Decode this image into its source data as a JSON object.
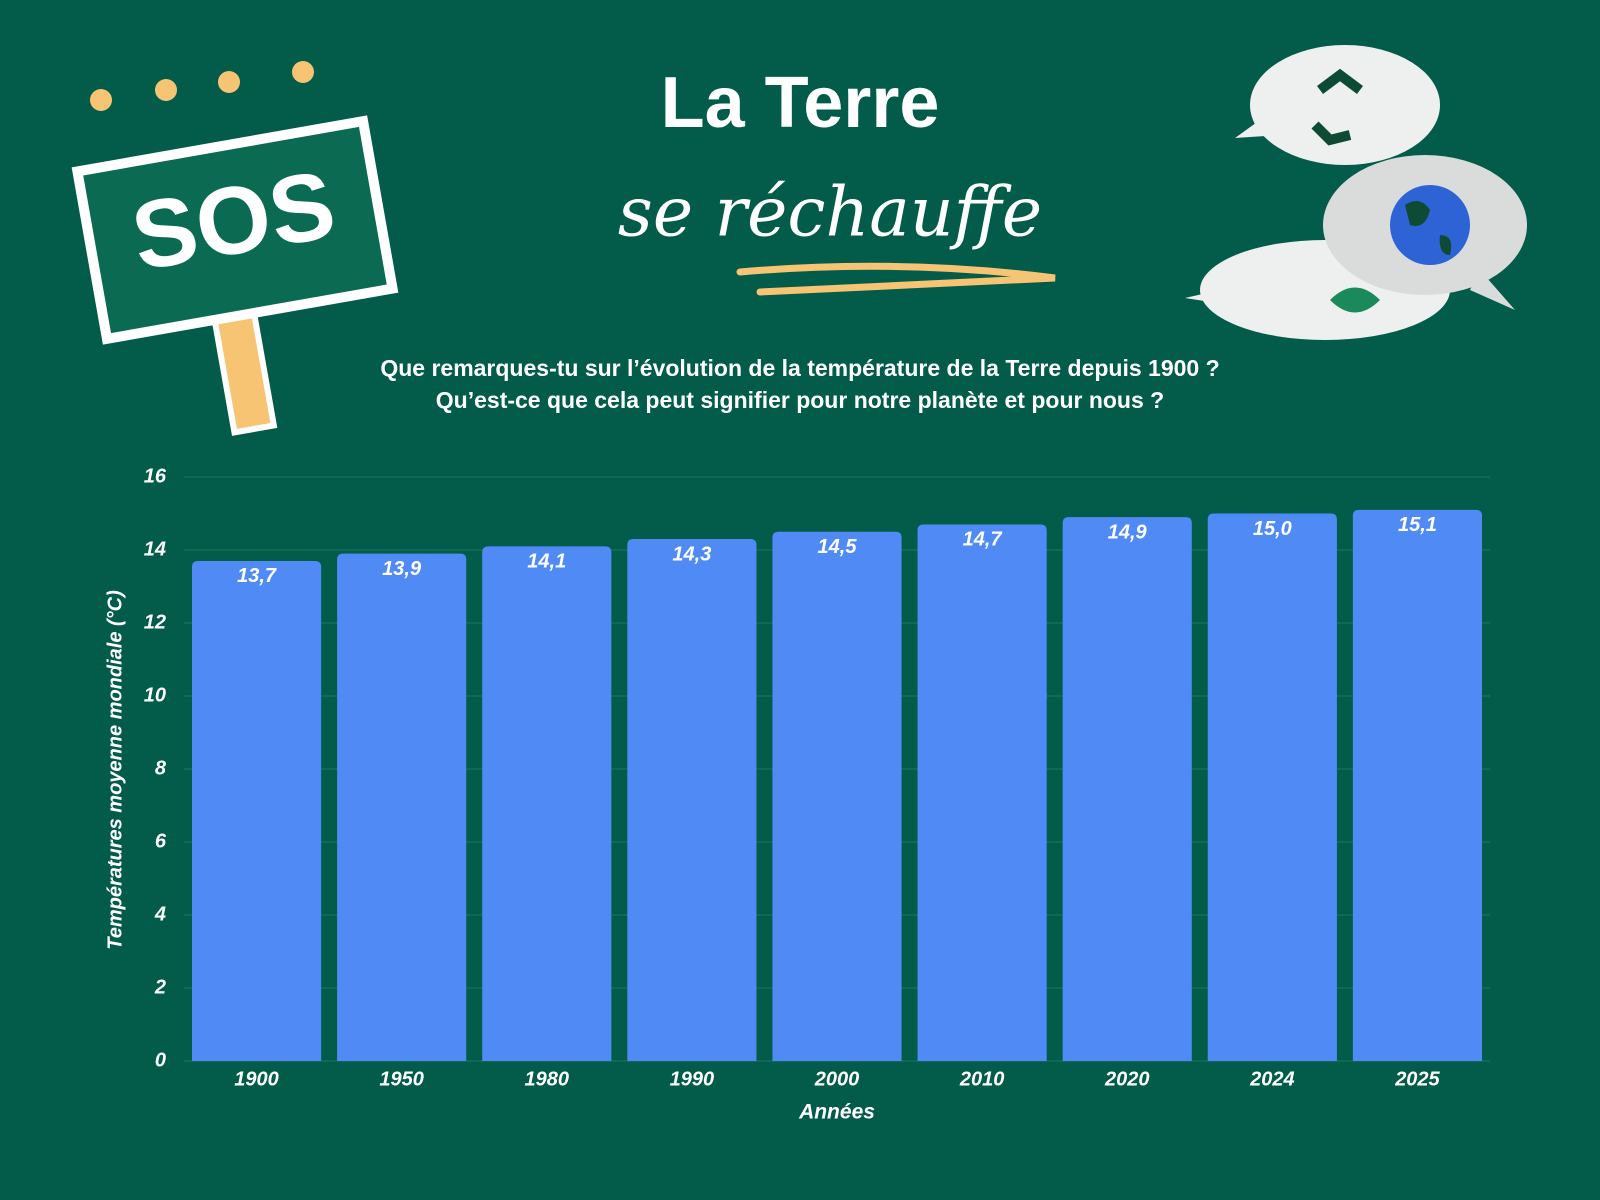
{
  "sign": "SOS",
  "chart_data": {
    "type": "bar",
    "title": "La Terre",
    "subtitle": "se réchauffe",
    "questions": [
      "Que remarques-tu sur l’évolution de la température de la Terre depuis 1900 ?",
      "Qu’est-ce que cela peut signifier pour notre planète et pour nous ?"
    ],
    "x_label": "Années",
    "y_label": "Températures moyenne mondiale (°C)",
    "categories": [
      "1900",
      "1950",
      "1980",
      "1990",
      "2000",
      "2010",
      "2020",
      "2024",
      "2025"
    ],
    "values": [
      13.7,
      13.9,
      14.1,
      14.3,
      14.5,
      14.7,
      14.9,
      15.0,
      15.1
    ],
    "value_labels": [
      "13,7",
      "13,9",
      "14,1",
      "14,3",
      "14,5",
      "14,7",
      "14,9",
      "15,0",
      "15,1"
    ],
    "color": "#4f8af5",
    "ylim": [
      0,
      16
    ],
    "yticks": [
      0,
      2,
      4,
      6,
      8,
      10,
      12,
      14,
      16
    ],
    "grid": true
  }
}
